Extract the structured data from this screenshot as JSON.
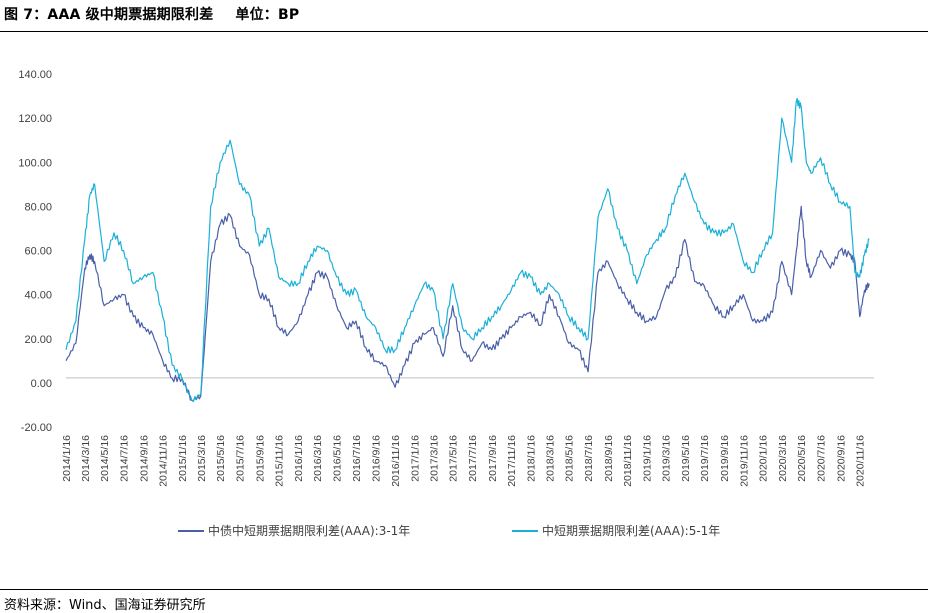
{
  "header": {
    "title": "图 7：AAA 级中期票据期限利差",
    "unit": "单位：BP"
  },
  "footer": {
    "source": "资料来源：Wind、国海证券研究所"
  },
  "chart_data": {
    "type": "line",
    "title": "图 7：AAA 级中期票据期限利差",
    "unit": "BP",
    "ylim": [
      -20,
      140
    ],
    "yticks": [
      -20,
      0,
      20,
      40,
      60,
      80,
      100,
      120,
      140
    ],
    "ytick_labels": [
      "-20.00",
      "0.00",
      "20.00",
      "40.00",
      "60.00",
      "80.00",
      "100.00",
      "120.00",
      "140.00"
    ],
    "x_range": [
      "2014-01-16",
      "2020-12-31"
    ],
    "xtick_labels": [
      "2014/1/16",
      "2014/3/16",
      "2014/5/16",
      "2014/7/16",
      "2014/9/16",
      "2014/11/16",
      "2015/1/16",
      "2015/3/16",
      "2015/5/16",
      "2015/7/16",
      "2015/9/16",
      "2015/11/16",
      "2016/1/16",
      "2016/3/16",
      "2016/5/16",
      "2016/7/16",
      "2016/9/16",
      "2016/11/16",
      "2017/1/16",
      "2017/3/16",
      "2017/5/16",
      "2017/7/16",
      "2017/9/16",
      "2017/11/16",
      "2018/1/16",
      "2018/3/16",
      "2018/5/16",
      "2018/7/16",
      "2018/9/16",
      "2018/11/16",
      "2019/1/16",
      "2019/3/16",
      "2019/5/16",
      "2019/7/16",
      "2019/9/16",
      "2019/11/16",
      "2020/1/16",
      "2020/3/16",
      "2020/5/16",
      "2020/7/16",
      "2020/9/16",
      "2020/11/16"
    ],
    "grid": false,
    "legend_position": "bottom",
    "series": [
      {
        "name": "中债中短期票据期限利差(AAA):3-1年",
        "color": "#4a5fa8",
        "x": [
          "2014-01-16",
          "2014-02-16",
          "2014-03-16",
          "2014-04-01",
          "2014-04-16",
          "2014-05-16",
          "2014-06-16",
          "2014-07-16",
          "2014-08-16",
          "2014-09-16",
          "2014-10-16",
          "2014-11-16",
          "2014-12-16",
          "2015-01-16",
          "2015-02-16",
          "2015-03-16",
          "2015-04-16",
          "2015-05-16",
          "2015-06-16",
          "2015-07-16",
          "2015-08-16",
          "2015-09-16",
          "2015-10-16",
          "2015-11-16",
          "2015-12-16",
          "2016-01-16",
          "2016-02-16",
          "2016-03-16",
          "2016-04-16",
          "2016-05-16",
          "2016-06-16",
          "2016-07-16",
          "2016-08-16",
          "2016-09-16",
          "2016-10-16",
          "2016-11-16",
          "2016-12-16",
          "2017-01-16",
          "2017-02-16",
          "2017-03-16",
          "2017-04-16",
          "2017-05-16",
          "2017-06-16",
          "2017-07-16",
          "2017-08-16",
          "2017-09-16",
          "2017-10-16",
          "2017-11-16",
          "2017-12-16",
          "2018-01-16",
          "2018-02-16",
          "2018-03-16",
          "2018-04-16",
          "2018-05-16",
          "2018-06-16",
          "2018-07-16",
          "2018-08-16",
          "2018-09-16",
          "2018-10-16",
          "2018-11-16",
          "2018-12-16",
          "2019-01-16",
          "2019-02-16",
          "2019-03-16",
          "2019-04-16",
          "2019-05-16",
          "2019-06-16",
          "2019-07-16",
          "2019-08-16",
          "2019-09-16",
          "2019-10-16",
          "2019-11-16",
          "2019-12-16",
          "2020-01-16",
          "2020-02-16",
          "2020-03-16",
          "2020-04-16",
          "2020-05-01",
          "2020-05-16",
          "2020-06-01",
          "2020-06-16",
          "2020-07-16",
          "2020-08-16",
          "2020-09-16",
          "2020-10-16",
          "2020-11-01",
          "2020-11-16",
          "2020-12-01",
          "2020-12-16"
        ],
        "values": [
          10,
          18,
          52,
          58,
          55,
          35,
          38,
          40,
          30,
          25,
          22,
          10,
          2,
          2,
          -8,
          -6,
          55,
          72,
          76,
          62,
          58,
          40,
          38,
          25,
          22,
          28,
          40,
          50,
          48,
          35,
          25,
          28,
          16,
          10,
          8,
          -2,
          8,
          18,
          22,
          25,
          12,
          35,
          15,
          10,
          18,
          15,
          20,
          25,
          30,
          32,
          26,
          40,
          30,
          18,
          15,
          5,
          50,
          55,
          45,
          38,
          32,
          28,
          30,
          42,
          48,
          65,
          46,
          44,
          35,
          30,
          35,
          40,
          28,
          28,
          32,
          55,
          40,
          60,
          80,
          55,
          48,
          60,
          52,
          60,
          58,
          55,
          30,
          42,
          45
        ]
      },
      {
        "name": "中短期票据期限利差(AAA):5-1年",
        "color": "#1ab0d8",
        "x": [
          "2014-01-16",
          "2014-02-16",
          "2014-03-16",
          "2014-04-01",
          "2014-04-16",
          "2014-05-16",
          "2014-06-16",
          "2014-07-16",
          "2014-08-16",
          "2014-09-16",
          "2014-10-16",
          "2014-11-16",
          "2014-12-16",
          "2015-01-16",
          "2015-02-16",
          "2015-03-16",
          "2015-04-16",
          "2015-05-16",
          "2015-06-16",
          "2015-07-16",
          "2015-08-16",
          "2015-09-16",
          "2015-10-16",
          "2015-11-16",
          "2015-12-16",
          "2016-01-16",
          "2016-02-16",
          "2016-03-16",
          "2016-04-16",
          "2016-05-16",
          "2016-06-16",
          "2016-07-16",
          "2016-08-16",
          "2016-09-16",
          "2016-10-16",
          "2016-11-16",
          "2016-12-16",
          "2017-01-16",
          "2017-02-16",
          "2017-03-16",
          "2017-04-16",
          "2017-05-16",
          "2017-06-16",
          "2017-07-16",
          "2017-08-16",
          "2017-09-16",
          "2017-10-16",
          "2017-11-16",
          "2017-12-16",
          "2018-01-16",
          "2018-02-16",
          "2018-03-16",
          "2018-04-16",
          "2018-05-16",
          "2018-06-16",
          "2018-07-16",
          "2018-08-16",
          "2018-09-16",
          "2018-10-16",
          "2018-11-16",
          "2018-12-16",
          "2019-01-16",
          "2019-02-16",
          "2019-03-16",
          "2019-04-16",
          "2019-05-16",
          "2019-06-16",
          "2019-07-16",
          "2019-08-16",
          "2019-09-16",
          "2019-10-16",
          "2019-11-16",
          "2019-12-16",
          "2020-01-16",
          "2020-02-16",
          "2020-03-16",
          "2020-04-16",
          "2020-05-01",
          "2020-05-16",
          "2020-06-01",
          "2020-06-16",
          "2020-07-16",
          "2020-08-16",
          "2020-09-16",
          "2020-10-16",
          "2020-11-01",
          "2020-11-16",
          "2020-12-01",
          "2020-12-16"
        ],
        "values": [
          15,
          28,
          65,
          85,
          90,
          55,
          68,
          60,
          45,
          48,
          50,
          30,
          8,
          2,
          -8,
          -5,
          80,
          100,
          110,
          90,
          85,
          62,
          70,
          48,
          45,
          45,
          55,
          62,
          60,
          48,
          40,
          42,
          30,
          25,
          15,
          15,
          25,
          35,
          45,
          42,
          20,
          45,
          25,
          20,
          25,
          30,
          35,
          42,
          50,
          48,
          40,
          45,
          40,
          30,
          25,
          20,
          75,
          88,
          70,
          60,
          45,
          58,
          65,
          70,
          85,
          95,
          82,
          72,
          68,
          68,
          72,
          55,
          50,
          60,
          68,
          120,
          100,
          128,
          125,
          100,
          95,
          102,
          90,
          82,
          80,
          50,
          48,
          58,
          65
        ]
      }
    ]
  }
}
